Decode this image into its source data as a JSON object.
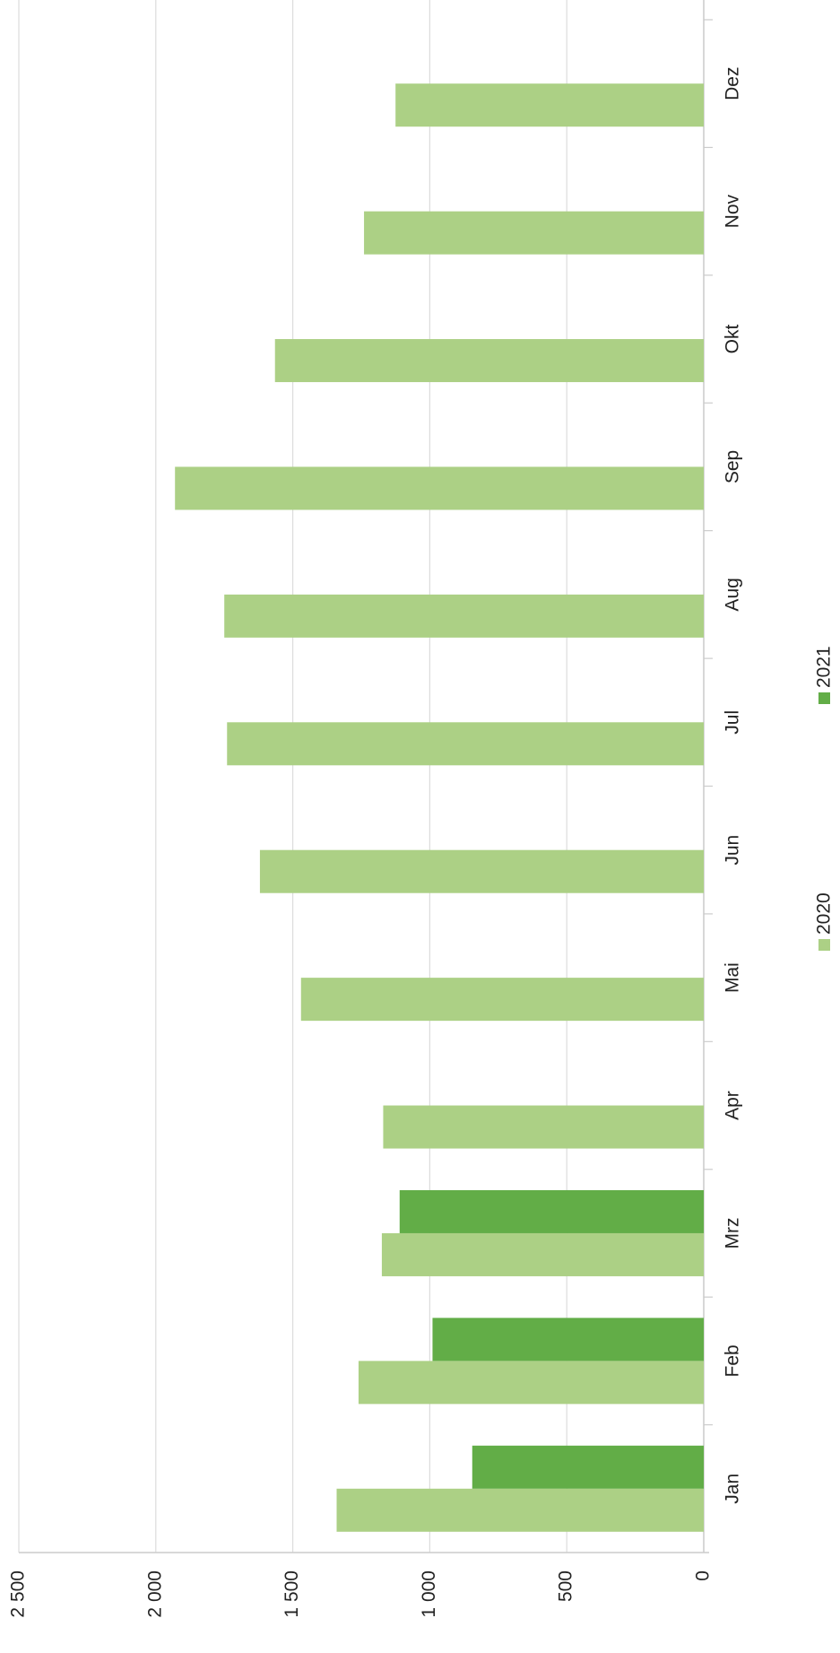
{
  "chart_data": {
    "type": "bar",
    "categories": [
      "Jan",
      "Feb",
      "Mrz",
      "Apr",
      "Mai",
      "Jun",
      "Jul",
      "Aug",
      "Sep",
      "Okt",
      "Nov",
      "Dez"
    ],
    "series": [
      {
        "name": "2020",
        "color": "#acd085",
        "values": [
          1340,
          1260,
          1175,
          1170,
          1470,
          1620,
          1740,
          1750,
          1930,
          1565,
          1240,
          1125
        ]
      },
      {
        "name": "2021",
        "color": "#62ad47",
        "values": [
          845,
          990,
          1110,
          null,
          null,
          null,
          null,
          null,
          null,
          null,
          null,
          null
        ]
      }
    ],
    "ylim": [
      0,
      2500
    ],
    "yticks": [
      0,
      500,
      {
        "value": 1000,
        "label": "1 000"
      },
      {
        "value": 1500,
        "label": "1 500"
      },
      {
        "value": 2000,
        "label": "2 000"
      },
      {
        "value": 2500,
        "label": "2 500"
      }
    ],
    "grid": true,
    "legend": "bottom"
  }
}
